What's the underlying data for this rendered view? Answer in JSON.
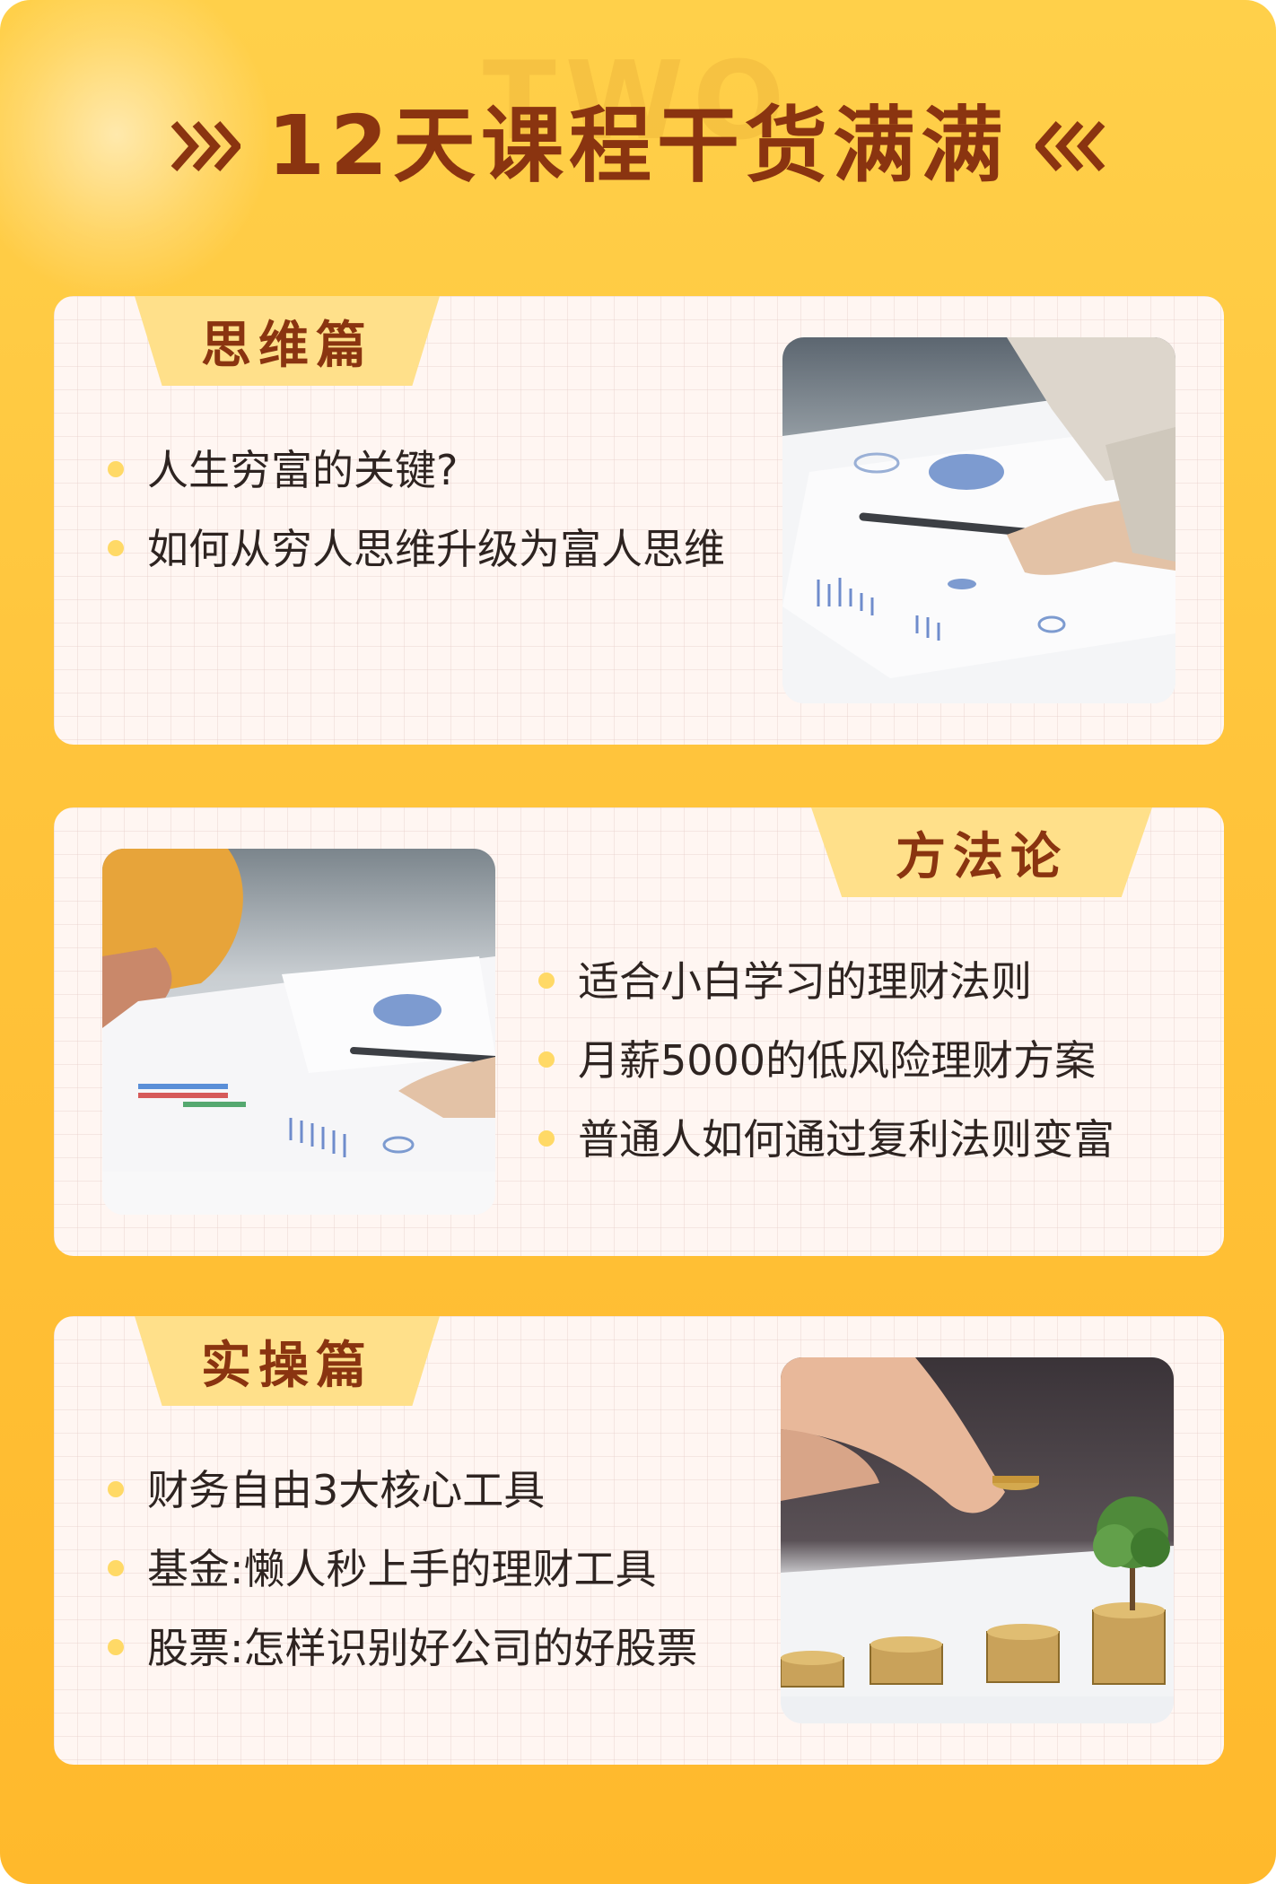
{
  "header": {
    "watermark": "TWO",
    "title": "12天课程干货满满"
  },
  "sections": [
    {
      "label": "思维篇",
      "items": [
        "人生穷富的关键?",
        "如何从穷人思维升级为富人思维"
      ],
      "image": "financial-chart-pen-photo"
    },
    {
      "label": "方法论",
      "items": [
        "适合小白学习的理财法则",
        "月薪5000的低风险理财方案",
        "普通人如何通过复利法则变富"
      ],
      "image": "financial-report-meeting-photo"
    },
    {
      "label": "实操篇",
      "items": [
        "财务自由3大核心工具",
        "基金:懒人秒上手的理财工具",
        "股票:怎样识别好公司的好股票"
      ],
      "image": "coin-stacks-plant-photo"
    }
  ],
  "colors": {
    "background": "#ffc33a",
    "title": "#8a3410",
    "tab": "#ffe08a",
    "card": "#fff6f2",
    "bullet_dot": "#ffd966",
    "text": "#2e2421"
  }
}
